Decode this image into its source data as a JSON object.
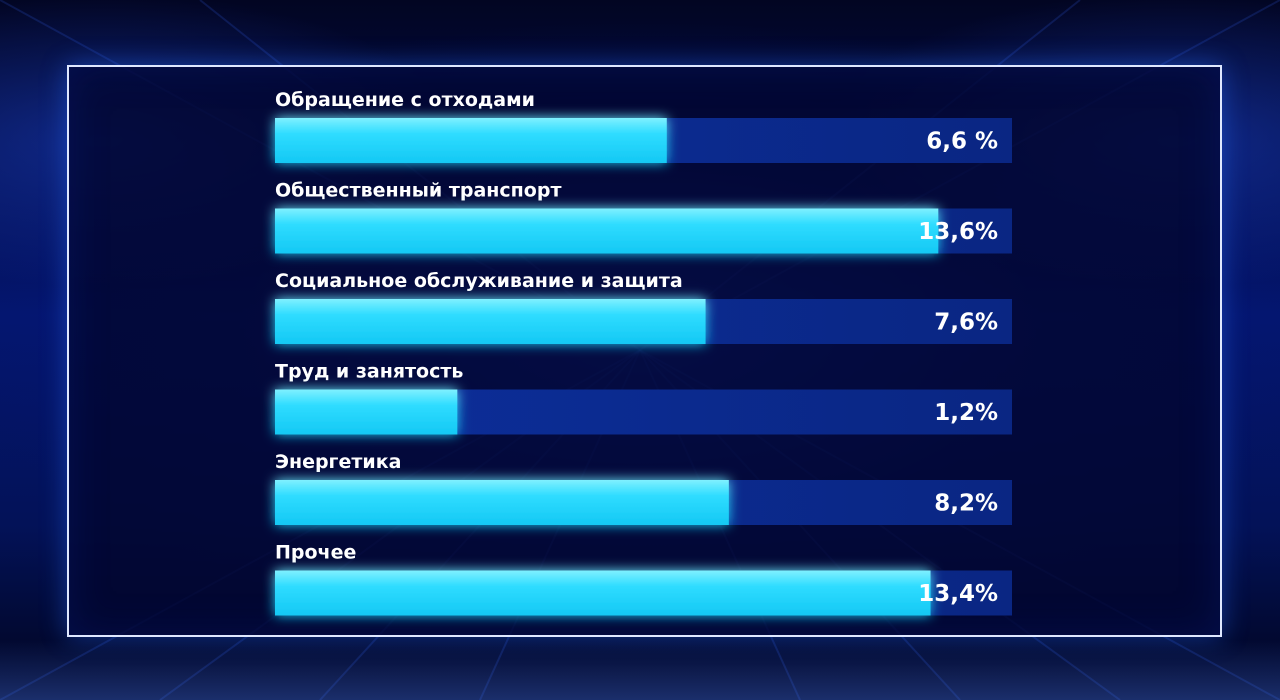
{
  "chart_data": {
    "type": "bar",
    "orientation": "horizontal",
    "categories": [
      "Обращение с отходами",
      "Общественный транспорт",
      "Социальное обслуживание и защита",
      "Труд и занятость",
      "Энергетика",
      "Прочее"
    ],
    "values": [
      6.6,
      13.6,
      7.6,
      1.2,
      8.2,
      13.4
    ],
    "value_labels": [
      "6,6 %",
      "13,6%",
      "7,6%",
      "1,2%",
      "8,2%",
      "13,4%"
    ],
    "title": "",
    "xlabel": "",
    "ylabel": "",
    "xlim": [
      -3.5,
      15.5
    ],
    "grid": false,
    "legend": "none",
    "colors": {
      "bar": "#22d6ff",
      "bar_highlight": "#7ff0ff",
      "track": "#0b2b8f",
      "frame": "#dfe8ff",
      "text": "#ffffff"
    }
  }
}
